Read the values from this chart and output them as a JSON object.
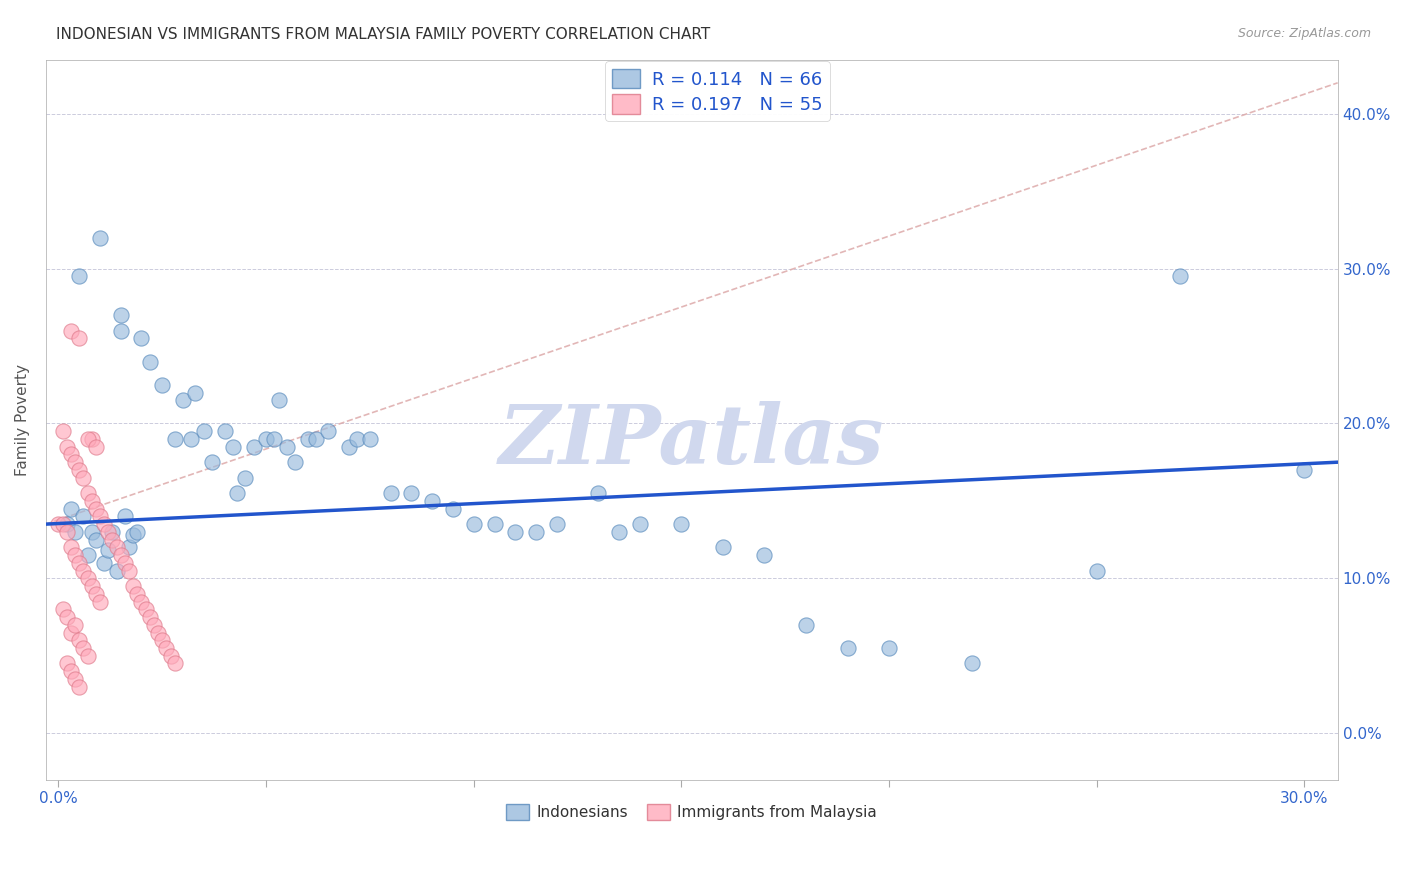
{
  "title": "INDONESIAN VS IMMIGRANTS FROM MALAYSIA FAMILY POVERTY CORRELATION CHART",
  "source": "Source: ZipAtlas.com",
  "xlabel_vals": [
    0.0,
    0.05,
    0.1,
    0.15,
    0.2,
    0.25,
    0.3
  ],
  "xlabel_ticks": [
    "0.0%",
    "",
    "",
    "",
    "",
    "",
    "30.0%"
  ],
  "ylabel_vals": [
    0.0,
    0.1,
    0.2,
    0.3,
    0.4
  ],
  "ylabel_ticks": [
    "0.0%",
    "10.0%",
    "20.0%",
    "30.0%",
    "40.0%"
  ],
  "xmin": -0.003,
  "xmax": 0.308,
  "ymin": -0.03,
  "ymax": 0.435,
  "r_blue": 0.114,
  "n_blue": 66,
  "r_pink": 0.197,
  "n_pink": 55,
  "blue_color": "#99BBDD",
  "blue_edge": "#5588BB",
  "pink_color": "#FFAABB",
  "pink_edge": "#DD7788",
  "blue_line_color": "#2255CC",
  "diag_line_color": "#DDAAAA",
  "watermark_color": "#D0D8EE",
  "legend_label_blue": "Indonesians",
  "legend_label_pink": "Immigrants from Malaysia",
  "blue_line_y0": 0.135,
  "blue_line_y1": 0.175,
  "blue_scatter_x": [
    0.005,
    0.01,
    0.015,
    0.015,
    0.02,
    0.022,
    0.025,
    0.03,
    0.033,
    0.035,
    0.037,
    0.04,
    0.042,
    0.043,
    0.045,
    0.047,
    0.05,
    0.052,
    0.053,
    0.055,
    0.057,
    0.06,
    0.062,
    0.065,
    0.07,
    0.072,
    0.075,
    0.08,
    0.085,
    0.09,
    0.095,
    0.1,
    0.105,
    0.11,
    0.115,
    0.12,
    0.13,
    0.135,
    0.14,
    0.15,
    0.16,
    0.17,
    0.18,
    0.19,
    0.2,
    0.22,
    0.25,
    0.27,
    0.3,
    0.002,
    0.003,
    0.004,
    0.006,
    0.007,
    0.008,
    0.009,
    0.011,
    0.012,
    0.013,
    0.014,
    0.016,
    0.017,
    0.018,
    0.019,
    0.028,
    0.032
  ],
  "blue_scatter_y": [
    0.295,
    0.32,
    0.26,
    0.27,
    0.255,
    0.24,
    0.225,
    0.215,
    0.22,
    0.195,
    0.175,
    0.195,
    0.185,
    0.155,
    0.165,
    0.185,
    0.19,
    0.19,
    0.215,
    0.185,
    0.175,
    0.19,
    0.19,
    0.195,
    0.185,
    0.19,
    0.19,
    0.155,
    0.155,
    0.15,
    0.145,
    0.135,
    0.135,
    0.13,
    0.13,
    0.135,
    0.155,
    0.13,
    0.135,
    0.135,
    0.12,
    0.115,
    0.07,
    0.055,
    0.055,
    0.045,
    0.105,
    0.295,
    0.17,
    0.135,
    0.145,
    0.13,
    0.14,
    0.115,
    0.13,
    0.125,
    0.11,
    0.118,
    0.13,
    0.105,
    0.14,
    0.12,
    0.128,
    0.13,
    0.19,
    0.19
  ],
  "pink_scatter_x": [
    0.0,
    0.001,
    0.001,
    0.001,
    0.002,
    0.002,
    0.002,
    0.002,
    0.003,
    0.003,
    0.003,
    0.003,
    0.004,
    0.004,
    0.004,
    0.004,
    0.005,
    0.005,
    0.005,
    0.005,
    0.006,
    0.006,
    0.006,
    0.007,
    0.007,
    0.007,
    0.008,
    0.008,
    0.008,
    0.009,
    0.009,
    0.01,
    0.01,
    0.011,
    0.012,
    0.013,
    0.014,
    0.015,
    0.016,
    0.017,
    0.018,
    0.019,
    0.02,
    0.021,
    0.022,
    0.023,
    0.024,
    0.025,
    0.026,
    0.027,
    0.028,
    0.003,
    0.005,
    0.007,
    0.009
  ],
  "pink_scatter_y": [
    0.135,
    0.195,
    0.135,
    0.08,
    0.185,
    0.13,
    0.075,
    0.045,
    0.18,
    0.12,
    0.065,
    0.04,
    0.175,
    0.115,
    0.07,
    0.035,
    0.17,
    0.11,
    0.06,
    0.03,
    0.165,
    0.105,
    0.055,
    0.155,
    0.1,
    0.05,
    0.19,
    0.15,
    0.095,
    0.145,
    0.09,
    0.14,
    0.085,
    0.135,
    0.13,
    0.125,
    0.12,
    0.115,
    0.11,
    0.105,
    0.095,
    0.09,
    0.085,
    0.08,
    0.075,
    0.07,
    0.065,
    0.06,
    0.055,
    0.05,
    0.045,
    0.26,
    0.255,
    0.19,
    0.185
  ]
}
